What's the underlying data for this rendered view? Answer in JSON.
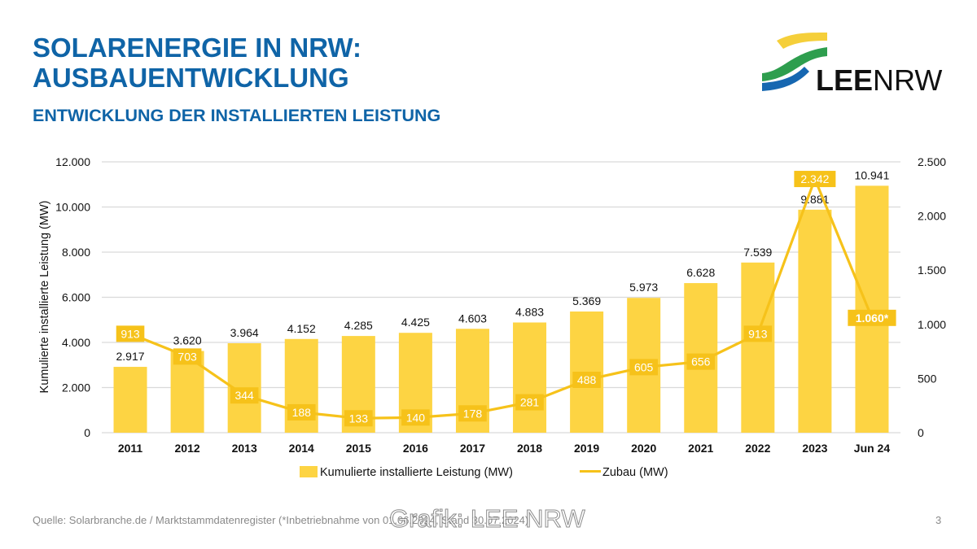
{
  "header": {
    "title_line1": "SOLARENERGIE IN NRW:",
    "title_line2": "AUSBAUENTWICKLUNG",
    "subtitle_regular": "ENTWICKLUNG DER ",
    "subtitle_bold": "INSTALLIERTEN LEISTUNG"
  },
  "logo": {
    "text_bold": "LEE",
    "text_regular": "NRW",
    "colors": {
      "yellow": "#f5cf3a",
      "green": "#2e9e4e",
      "blue": "#1667b1"
    }
  },
  "colors": {
    "title": "#0f64a7",
    "bar": "#fdd443",
    "line": "#f6c21a",
    "label_box": "#f6c21a"
  },
  "chart_data": {
    "type": "bar",
    "title": "",
    "categories": [
      "2011",
      "2012",
      "2013",
      "2014",
      "2015",
      "2016",
      "2017",
      "2018",
      "2019",
      "2020",
      "2021",
      "2022",
      "2023",
      "Jun 24"
    ],
    "series": [
      {
        "name": "Kumulierte installierte Leistung (MW)",
        "type": "bar",
        "axis": "left",
        "values": [
          2917,
          3620,
          3964,
          4152,
          4285,
          4425,
          4603,
          4883,
          5369,
          5973,
          6628,
          7539,
          9881,
          10941
        ],
        "labels": [
          "2.917",
          "3.620",
          "3.964",
          "4.152",
          "4.285",
          "4.425",
          "4.603",
          "4.883",
          "5.369",
          "5.973",
          "6.628",
          "7.539",
          "9.881",
          "10.941"
        ]
      },
      {
        "name": "Zubau (MW)",
        "type": "line",
        "axis": "right",
        "values": [
          913,
          703,
          344,
          188,
          133,
          140,
          178,
          281,
          488,
          605,
          656,
          913,
          2342,
          1060
        ],
        "labels": [
          "913",
          "703",
          "344",
          "188",
          "133",
          "140",
          "178",
          "281",
          "488",
          "605",
          "656",
          "913",
          "2.342",
          "1.060*"
        ]
      }
    ],
    "ylabel": "Kumulierte installierte Leistung (MW)",
    "ylim": [
      0,
      12000
    ],
    "yticks": [
      0,
      2000,
      4000,
      6000,
      8000,
      10000,
      12000
    ],
    "ytick_labels": [
      "0",
      "2.000",
      "4.000",
      "6.000",
      "8.000",
      "10.000",
      "12.000"
    ],
    "y2lim": [
      0,
      2500
    ],
    "y2ticks": [
      0,
      500,
      1000,
      1500,
      2000,
      2500
    ],
    "y2tick_labels": [
      "0",
      "500",
      "1.000",
      "1.500",
      "2.000",
      "2.500"
    ],
    "grid": true,
    "legend": "bottom"
  },
  "footer": {
    "source": "Quelle: Solarbranche.de / Marktstammdatenregister (*Inbetriebnahme von 01.06.2024, Stand 30.07.2024)",
    "watermark": "Grafik: LEE NRW",
    "page_number": "3"
  }
}
